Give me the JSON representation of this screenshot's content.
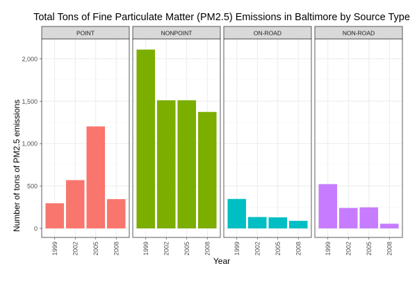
{
  "chart_data": {
    "type": "bar",
    "title": "Total Tons of Fine Particulate Matter (PM2.5) Emissions in Baltimore by Source Type",
    "xlabel": "Year",
    "ylabel": "Number of tons of PM2.5 emissions",
    "ylim": [
      0,
      2200
    ],
    "yticks": [
      "0",
      "500",
      "1,000",
      "1,500",
      "2,000"
    ],
    "ytick_values": [
      0,
      500,
      1000,
      1500,
      2000
    ],
    "grid": true,
    "categories": [
      "1999",
      "2002",
      "2005",
      "2008"
    ],
    "facets": [
      {
        "name": "POINT",
        "color": "#F8766D",
        "values": [
          296,
          569,
          1202,
          345
        ]
      },
      {
        "name": "NONPOINT",
        "color": "#7CAE00",
        "values": [
          2108,
          1510,
          1510,
          1373
        ]
      },
      {
        "name": "ON-ROAD",
        "color": "#00BFC4",
        "values": [
          347,
          134,
          130,
          89
        ]
      },
      {
        "name": "NON-ROAD",
        "color": "#C77CFF",
        "values": [
          522,
          241,
          248,
          55
        ]
      }
    ]
  },
  "colors": {
    "strip_background": "#D9D9D9",
    "panel_border": "#333333",
    "grid_major": "#EBEBEB",
    "grid_minor": "#F5F5F5",
    "text": "#1A1A1A",
    "tick_text": "#4D4D4D"
  }
}
